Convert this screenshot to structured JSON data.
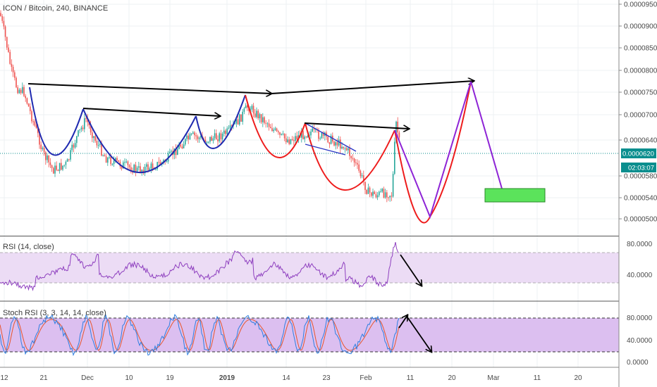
{
  "header": {
    "symbol_title": "ICON / Bitcoin, 240, BINANCE"
  },
  "price_axis": {
    "ticks": [
      "0.0000950",
      "0.0000900",
      "0.0000850",
      "0.0000800",
      "0.0000750",
      "0.0000700",
      "0.0000640",
      "0.0000580",
      "0.0000540",
      "0.0000500"
    ],
    "last_price": "0.0000620",
    "countdown": "02:03:07"
  },
  "rsi_panel": {
    "label": "RSI (14, close)",
    "ticks": [
      "80.0000",
      "40.0000"
    ]
  },
  "stoch_panel": {
    "label": "Stoch RSI (3, 3, 14, 14, close)",
    "ticks": [
      "80.0000",
      "40.0000",
      "0.0000"
    ]
  },
  "time_axis": {
    "labels": [
      "12",
      "21",
      "Dec",
      "10",
      "19",
      "2019",
      "14",
      "23",
      "Feb",
      "11",
      "20",
      "Mar",
      "11",
      "20"
    ]
  },
  "colors": {
    "candle_up": "#26a69a",
    "candle_down": "#ef5350",
    "cup_blue": "#1f2ab0",
    "cup_red": "#ee1c1c",
    "trend_black": "#000000",
    "projection_purple": "#8e24d6",
    "target_green": "#5be35b",
    "rsi_line": "#8e3fbf",
    "rsi_band": "#e8d5f2",
    "stoch_band": "#d8b4ef",
    "stoch_k": "#2f7fe0",
    "stoch_d": "#e8552b",
    "last_price_tag": "#0a8e8e"
  },
  "chart_data": [
    {
      "type": "candlestick",
      "title": "ICON / Bitcoin, 240, BINANCE",
      "y_unit": "BTC",
      "ylim": [
        4.85e-05,
        9.6e-05
      ],
      "x_ticks": [
        "12",
        "21",
        "Dec",
        "10",
        "19",
        "2019",
        "14",
        "23",
        "Feb",
        "11",
        "20",
        "Mar",
        "11",
        "20"
      ],
      "close_trace": [
        [
          0,
          9.3e-05
        ],
        [
          8,
          8.7e-05
        ],
        [
          16,
          8e-05
        ],
        [
          24,
          7.6e-05
        ],
        [
          34,
          7.5e-05
        ],
        [
          48,
          6.8e-05
        ],
        [
          60,
          6.2e-05
        ],
        [
          75,
          5.9e-05
        ],
        [
          95,
          6e-05
        ],
        [
          110,
          6.5e-05
        ],
        [
          122,
          6.9e-05
        ],
        [
          135,
          6.4e-05
        ],
        [
          150,
          6.1e-05
        ],
        [
          170,
          6e-05
        ],
        [
          195,
          5.9e-05
        ],
        [
          215,
          5.95e-05
        ],
        [
          235,
          6.05e-05
        ],
        [
          255,
          6.3e-05
        ],
        [
          275,
          6.5e-05
        ],
        [
          290,
          6.4e-05
        ],
        [
          305,
          6.45e-05
        ],
        [
          325,
          6.6e-05
        ],
        [
          340,
          6.9e-05
        ],
        [
          352,
          7.2e-05
        ],
        [
          365,
          7e-05
        ],
        [
          380,
          6.8e-05
        ],
        [
          395,
          6.5e-05
        ],
        [
          410,
          6.4e-05
        ],
        [
          425,
          6.5e-05
        ],
        [
          440,
          6.6e-05
        ],
        [
          455,
          6.5e-05
        ],
        [
          470,
          6.4e-05
        ],
        [
          488,
          6.3e-05
        ],
        [
          500,
          6.1e-05
        ],
        [
          512,
          5.8e-05
        ],
        [
          522,
          5.5e-05
        ],
        [
          535,
          5.45e-05
        ],
        [
          548,
          5.5e-05
        ],
        [
          556,
          5.45e-05
        ],
        [
          562,
          6.8e-05
        ],
        [
          568,
          6.2e-05
        ]
      ],
      "last_price": 6.2e-05,
      "annotations": {
        "resistance_lines": [
          [
            [
              40,
              7.6e-05
            ],
            [
              385,
              7.45e-05
            ]
          ],
          [
            [
              118,
              7.08e-05
            ],
            [
              312,
              6.9e-05
            ]
          ],
          [
            [
              385,
              7.45e-05
            ],
            [
              672,
              7.7e-05
            ]
          ],
          [
            [
              432,
              6.85e-05
            ],
            [
              580,
              6.8e-05
            ]
          ]
        ],
        "projection_path": [
          [
            560,
            6.8e-05
          ],
          [
            610,
            5e-05
          ],
          [
            668,
            7.7e-05
          ],
          [
            718,
            5.35e-05
          ]
        ],
        "target_zone": [
          [
            688,
            5.4e-05
          ],
          [
            773,
            5.65e-05
          ]
        ]
      }
    },
    {
      "type": "line",
      "title": "RSI (14, close)",
      "ylim": [
        25,
        95
      ],
      "band": [
        30,
        70
      ],
      "trend_arrow": [
        [
          568,
          68
        ],
        [
          598,
          30
        ]
      ]
    },
    {
      "type": "line",
      "title": "Stoch RSI (3, 3, 14, 14, close)",
      "ylim": [
        -8,
        105
      ],
      "band": [
        20,
        80
      ],
      "trend_arrow": [
        [
          575,
          80
        ],
        [
          610,
          20
        ]
      ]
    }
  ]
}
